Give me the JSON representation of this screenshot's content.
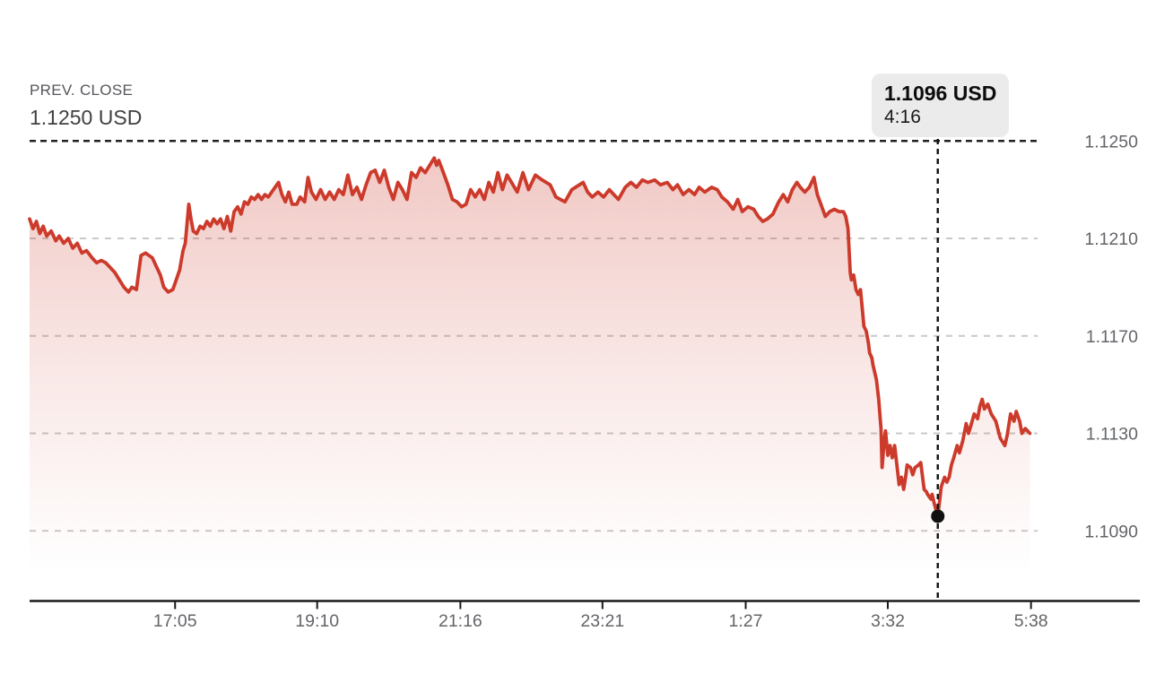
{
  "header": {
    "prev_close_label": "PREV. CLOSE",
    "prev_close_display": "1.1250 USD"
  },
  "tooltip": {
    "price": "1.1096 USD",
    "time": "4:16"
  },
  "chart_data": {
    "type": "line",
    "prev_close": 1.125,
    "unit": "USD",
    "ylim": [
      1.1061,
      1.125
    ],
    "grid": "dashed-horizontal",
    "legend": "none",
    "y_axis": {
      "side": "right",
      "ticks": [
        {
          "label": "1.1250",
          "value": 1.125
        },
        {
          "label": "1.1210",
          "value": 1.121
        },
        {
          "label": "1.1170",
          "value": 1.117
        },
        {
          "label": "1.1130",
          "value": 1.113
        },
        {
          "label": "1.1090",
          "value": 1.109
        }
      ]
    },
    "x_axis": {
      "ticks": [
        {
          "label": "17:05",
          "min": 128
        },
        {
          "label": "19:10",
          "min": 253
        },
        {
          "label": "21:16",
          "min": 379
        },
        {
          "label": "23:21",
          "min": 504
        },
        {
          "label": "1:27",
          "min": 630
        },
        {
          "label": "3:32",
          "min": 755
        },
        {
          "label": "5:38",
          "min": 881
        }
      ]
    },
    "cursor": {
      "min": 799,
      "value": 1.1096,
      "price_display": "1.1096 USD",
      "time_display": "4:16"
    },
    "colors": {
      "line": "#cc3a2b",
      "fill_top": "rgba(204,58,43,0.28)",
      "fill_mid": "rgba(204,58,43,0.11)",
      "fill_bottom": "rgba(204,58,43,0)",
      "grid": "#c9c9c9",
      "prev_close_line": "#222222",
      "cursor": "#111111",
      "axis": "#1a1a1a",
      "axis_text": "#636569",
      "tooltip_bg": "#ebebeb"
    },
    "series": [
      {
        "name": "price",
        "x_minutes_from_start": true,
        "points": [
          [
            0,
            1.1218
          ],
          [
            3,
            1.1214
          ],
          [
            6,
            1.1217
          ],
          [
            9,
            1.1212
          ],
          [
            12,
            1.1215
          ],
          [
            15,
            1.1211
          ],
          [
            19,
            1.1213
          ],
          [
            23,
            1.1209
          ],
          [
            26,
            1.1211
          ],
          [
            30,
            1.1208
          ],
          [
            34,
            1.121
          ],
          [
            38,
            1.1206
          ],
          [
            42,
            1.1208
          ],
          [
            46,
            1.1204
          ],
          [
            50,
            1.1205
          ],
          [
            55,
            1.1202
          ],
          [
            59,
            1.12
          ],
          [
            63,
            1.1201
          ],
          [
            67,
            1.12
          ],
          [
            71,
            1.1198
          ],
          [
            75,
            1.1196
          ],
          [
            79,
            1.1193
          ],
          [
            83,
            1.119
          ],
          [
            87,
            1.1188
          ],
          [
            90,
            1.119
          ],
          [
            94,
            1.1189
          ],
          [
            98,
            1.1203
          ],
          [
            102,
            1.1204
          ],
          [
            105,
            1.1203
          ],
          [
            108,
            1.1202
          ],
          [
            111,
            1.1199
          ],
          [
            115,
            1.1195
          ],
          [
            118,
            1.119
          ],
          [
            122,
            1.1188
          ],
          [
            126,
            1.1189
          ],
          [
            129,
            1.1193
          ],
          [
            132,
            1.1197
          ],
          [
            135,
            1.1205
          ],
          [
            137,
            1.1208
          ],
          [
            140,
            1.1224
          ],
          [
            142,
            1.1218
          ],
          [
            144,
            1.1213
          ],
          [
            147,
            1.1212
          ],
          [
            150,
            1.1215
          ],
          [
            153,
            1.1214
          ],
          [
            156,
            1.1217
          ],
          [
            159,
            1.1215
          ],
          [
            162,
            1.1218
          ],
          [
            165,
            1.1216
          ],
          [
            168,
            1.1218
          ],
          [
            171,
            1.1214
          ],
          [
            174,
            1.1219
          ],
          [
            177,
            1.1213
          ],
          [
            180,
            1.1221
          ],
          [
            183,
            1.1223
          ],
          [
            186,
            1.122
          ],
          [
            189,
            1.1225
          ],
          [
            192,
            1.1224
          ],
          [
            195,
            1.1227
          ],
          [
            198,
            1.1226
          ],
          [
            201,
            1.1228
          ],
          [
            204,
            1.1226
          ],
          [
            207,
            1.1228
          ],
          [
            210,
            1.1227
          ],
          [
            213,
            1.1229
          ],
          [
            216,
            1.1231
          ],
          [
            219,
            1.1233
          ],
          [
            222,
            1.1228
          ],
          [
            225,
            1.1225
          ],
          [
            228,
            1.1229
          ],
          [
            231,
            1.1224
          ],
          [
            235,
            1.1224
          ],
          [
            238,
            1.1227
          ],
          [
            242,
            1.1225
          ],
          [
            245,
            1.1235
          ],
          [
            248,
            1.1229
          ],
          [
            252,
            1.1226
          ],
          [
            256,
            1.123
          ],
          [
            260,
            1.1226
          ],
          [
            264,
            1.1229
          ],
          [
            268,
            1.1226
          ],
          [
            272,
            1.123
          ],
          [
            276,
            1.1228
          ],
          [
            280,
            1.1236
          ],
          [
            284,
            1.1228
          ],
          [
            288,
            1.1231
          ],
          [
            292,
            1.1226
          ],
          [
            296,
            1.1232
          ],
          [
            300,
            1.1237
          ],
          [
            304,
            1.1238
          ],
          [
            308,
            1.1233
          ],
          [
            312,
            1.1238
          ],
          [
            316,
            1.1231
          ],
          [
            320,
            1.1226
          ],
          [
            324,
            1.1233
          ],
          [
            328,
            1.123
          ],
          [
            332,
            1.1226
          ],
          [
            336,
            1.1237
          ],
          [
            340,
            1.1235
          ],
          [
            344,
            1.1239
          ],
          [
            348,
            1.1237
          ],
          [
            352,
            1.124
          ],
          [
            356,
            1.1243
          ],
          [
            358,
            1.124
          ],
          [
            360,
            1.1242
          ],
          [
            364,
            1.1237
          ],
          [
            368,
            1.1232
          ],
          [
            372,
            1.1226
          ],
          [
            376,
            1.1225
          ],
          [
            380,
            1.1223
          ],
          [
            384,
            1.1224
          ],
          [
            388,
            1.123
          ],
          [
            392,
            1.1227
          ],
          [
            396,
            1.123
          ],
          [
            400,
            1.1226
          ],
          [
            404,
            1.1233
          ],
          [
            408,
            1.1229
          ],
          [
            412,
            1.1237
          ],
          [
            416,
            1.123
          ],
          [
            420,
            1.1236
          ],
          [
            424,
            1.1233
          ],
          [
            429,
            1.1229
          ],
          [
            434,
            1.1237
          ],
          [
            439,
            1.123
          ],
          [
            445,
            1.1236
          ],
          [
            451,
            1.1234
          ],
          [
            458,
            1.1232
          ],
          [
            463,
            1.1227
          ],
          [
            471,
            1.1225
          ],
          [
            477,
            1.123
          ],
          [
            487,
            1.1233
          ],
          [
            491,
            1.1229
          ],
          [
            495,
            1.1227
          ],
          [
            500,
            1.1229
          ],
          [
            505,
            1.1227
          ],
          [
            510,
            1.123
          ],
          [
            514,
            1.1228
          ],
          [
            518,
            1.1226
          ],
          [
            524,
            1.1231
          ],
          [
            529,
            1.1233
          ],
          [
            534,
            1.1231
          ],
          [
            539,
            1.1234
          ],
          [
            544,
            1.1233
          ],
          [
            550,
            1.1234
          ],
          [
            555,
            1.1232
          ],
          [
            561,
            1.1233
          ],
          [
            566,
            1.123
          ],
          [
            570,
            1.1232
          ],
          [
            575,
            1.1228
          ],
          [
            580,
            1.123
          ],
          [
            585,
            1.1228
          ],
          [
            589,
            1.1231
          ],
          [
            594,
            1.1229
          ],
          [
            600,
            1.1231
          ],
          [
            605,
            1.123
          ],
          [
            609,
            1.1227
          ],
          [
            614,
            1.1225
          ],
          [
            619,
            1.1222
          ],
          [
            623,
            1.1226
          ],
          [
            627,
            1.1221
          ],
          [
            632,
            1.1223
          ],
          [
            637,
            1.1222
          ],
          [
            641,
            1.1219
          ],
          [
            645,
            1.1217
          ],
          [
            649,
            1.1218
          ],
          [
            654,
            1.122
          ],
          [
            659,
            1.1225
          ],
          [
            663,
            1.1228
          ],
          [
            667,
            1.1225
          ],
          [
            671,
            1.123
          ],
          [
            675,
            1.1233
          ],
          [
            678,
            1.1231
          ],
          [
            682,
            1.1229
          ],
          [
            686,
            1.1231
          ],
          [
            690,
            1.1235
          ],
          [
            693,
            1.1228
          ],
          [
            697,
            1.1223
          ],
          [
            700,
            1.1219
          ],
          [
            704,
            1.1221
          ],
          [
            708,
            1.1222
          ],
          [
            712,
            1.1221
          ],
          [
            716,
            1.1221
          ],
          [
            718,
            1.1219
          ],
          [
            720,
            1.1214
          ],
          [
            722,
            1.1196
          ],
          [
            723,
            1.1193
          ],
          [
            725,
            1.1195
          ],
          [
            727,
            1.1189
          ],
          [
            729,
            1.1187
          ],
          [
            731,
            1.1189
          ],
          [
            733,
            1.1179
          ],
          [
            734,
            1.1174
          ],
          [
            736,
            1.1172
          ],
          [
            738,
            1.1167
          ],
          [
            739,
            1.1163
          ],
          [
            741,
            1.1161
          ],
          [
            742,
            1.1158
          ],
          [
            745,
            1.1152
          ],
          [
            747,
            1.1144
          ],
          [
            749,
            1.1132
          ],
          [
            750,
            1.1116
          ],
          [
            752,
            1.1128
          ],
          [
            753,
            1.1131
          ],
          [
            755,
            1.1121
          ],
          [
            757,
            1.1125
          ],
          [
            759,
            1.112
          ],
          [
            761,
            1.1125
          ],
          [
            763,
            1.1117
          ],
          [
            765,
            1.1109
          ],
          [
            767,
            1.1112
          ],
          [
            769,
            1.1107
          ],
          [
            771,
            1.1113
          ],
          [
            772,
            1.1117
          ],
          [
            775,
            1.1116
          ],
          [
            777,
            1.1113
          ],
          [
            779,
            1.1116
          ],
          [
            782,
            1.1117
          ],
          [
            784,
            1.1118
          ],
          [
            787,
            1.1107
          ],
          [
            789,
            1.1106
          ],
          [
            790,
            1.1105
          ],
          [
            793,
            1.1103
          ],
          [
            794,
            1.1105
          ],
          [
            796,
            1.1101
          ],
          [
            799,
            1.1096
          ],
          [
            801,
            1.1104
          ],
          [
            802,
            1.1108
          ],
          [
            805,
            1.1112
          ],
          [
            807,
            1.111
          ],
          [
            809,
            1.1112
          ],
          [
            811,
            1.1117
          ],
          [
            813,
            1.112
          ],
          [
            816,
            1.1125
          ],
          [
            818,
            1.1122
          ],
          [
            821,
            1.1127
          ],
          [
            824,
            1.1134
          ],
          [
            826,
            1.113
          ],
          [
            828,
            1.1133
          ],
          [
            831,
            1.1138
          ],
          [
            834,
            1.1136
          ],
          [
            836,
            1.1141
          ],
          [
            838,
            1.1144
          ],
          [
            840,
            1.114
          ],
          [
            843,
            1.1142
          ],
          [
            846,
            1.1138
          ],
          [
            850,
            1.1135
          ],
          [
            854,
            1.1128
          ],
          [
            858,
            1.1125
          ],
          [
            860,
            1.1129
          ],
          [
            863,
            1.1138
          ],
          [
            866,
            1.1135
          ],
          [
            868,
            1.1139
          ],
          [
            871,
            1.1135
          ],
          [
            873,
            1.113
          ],
          [
            876,
            1.1132
          ],
          [
            880,
            1.113
          ]
        ]
      }
    ]
  }
}
